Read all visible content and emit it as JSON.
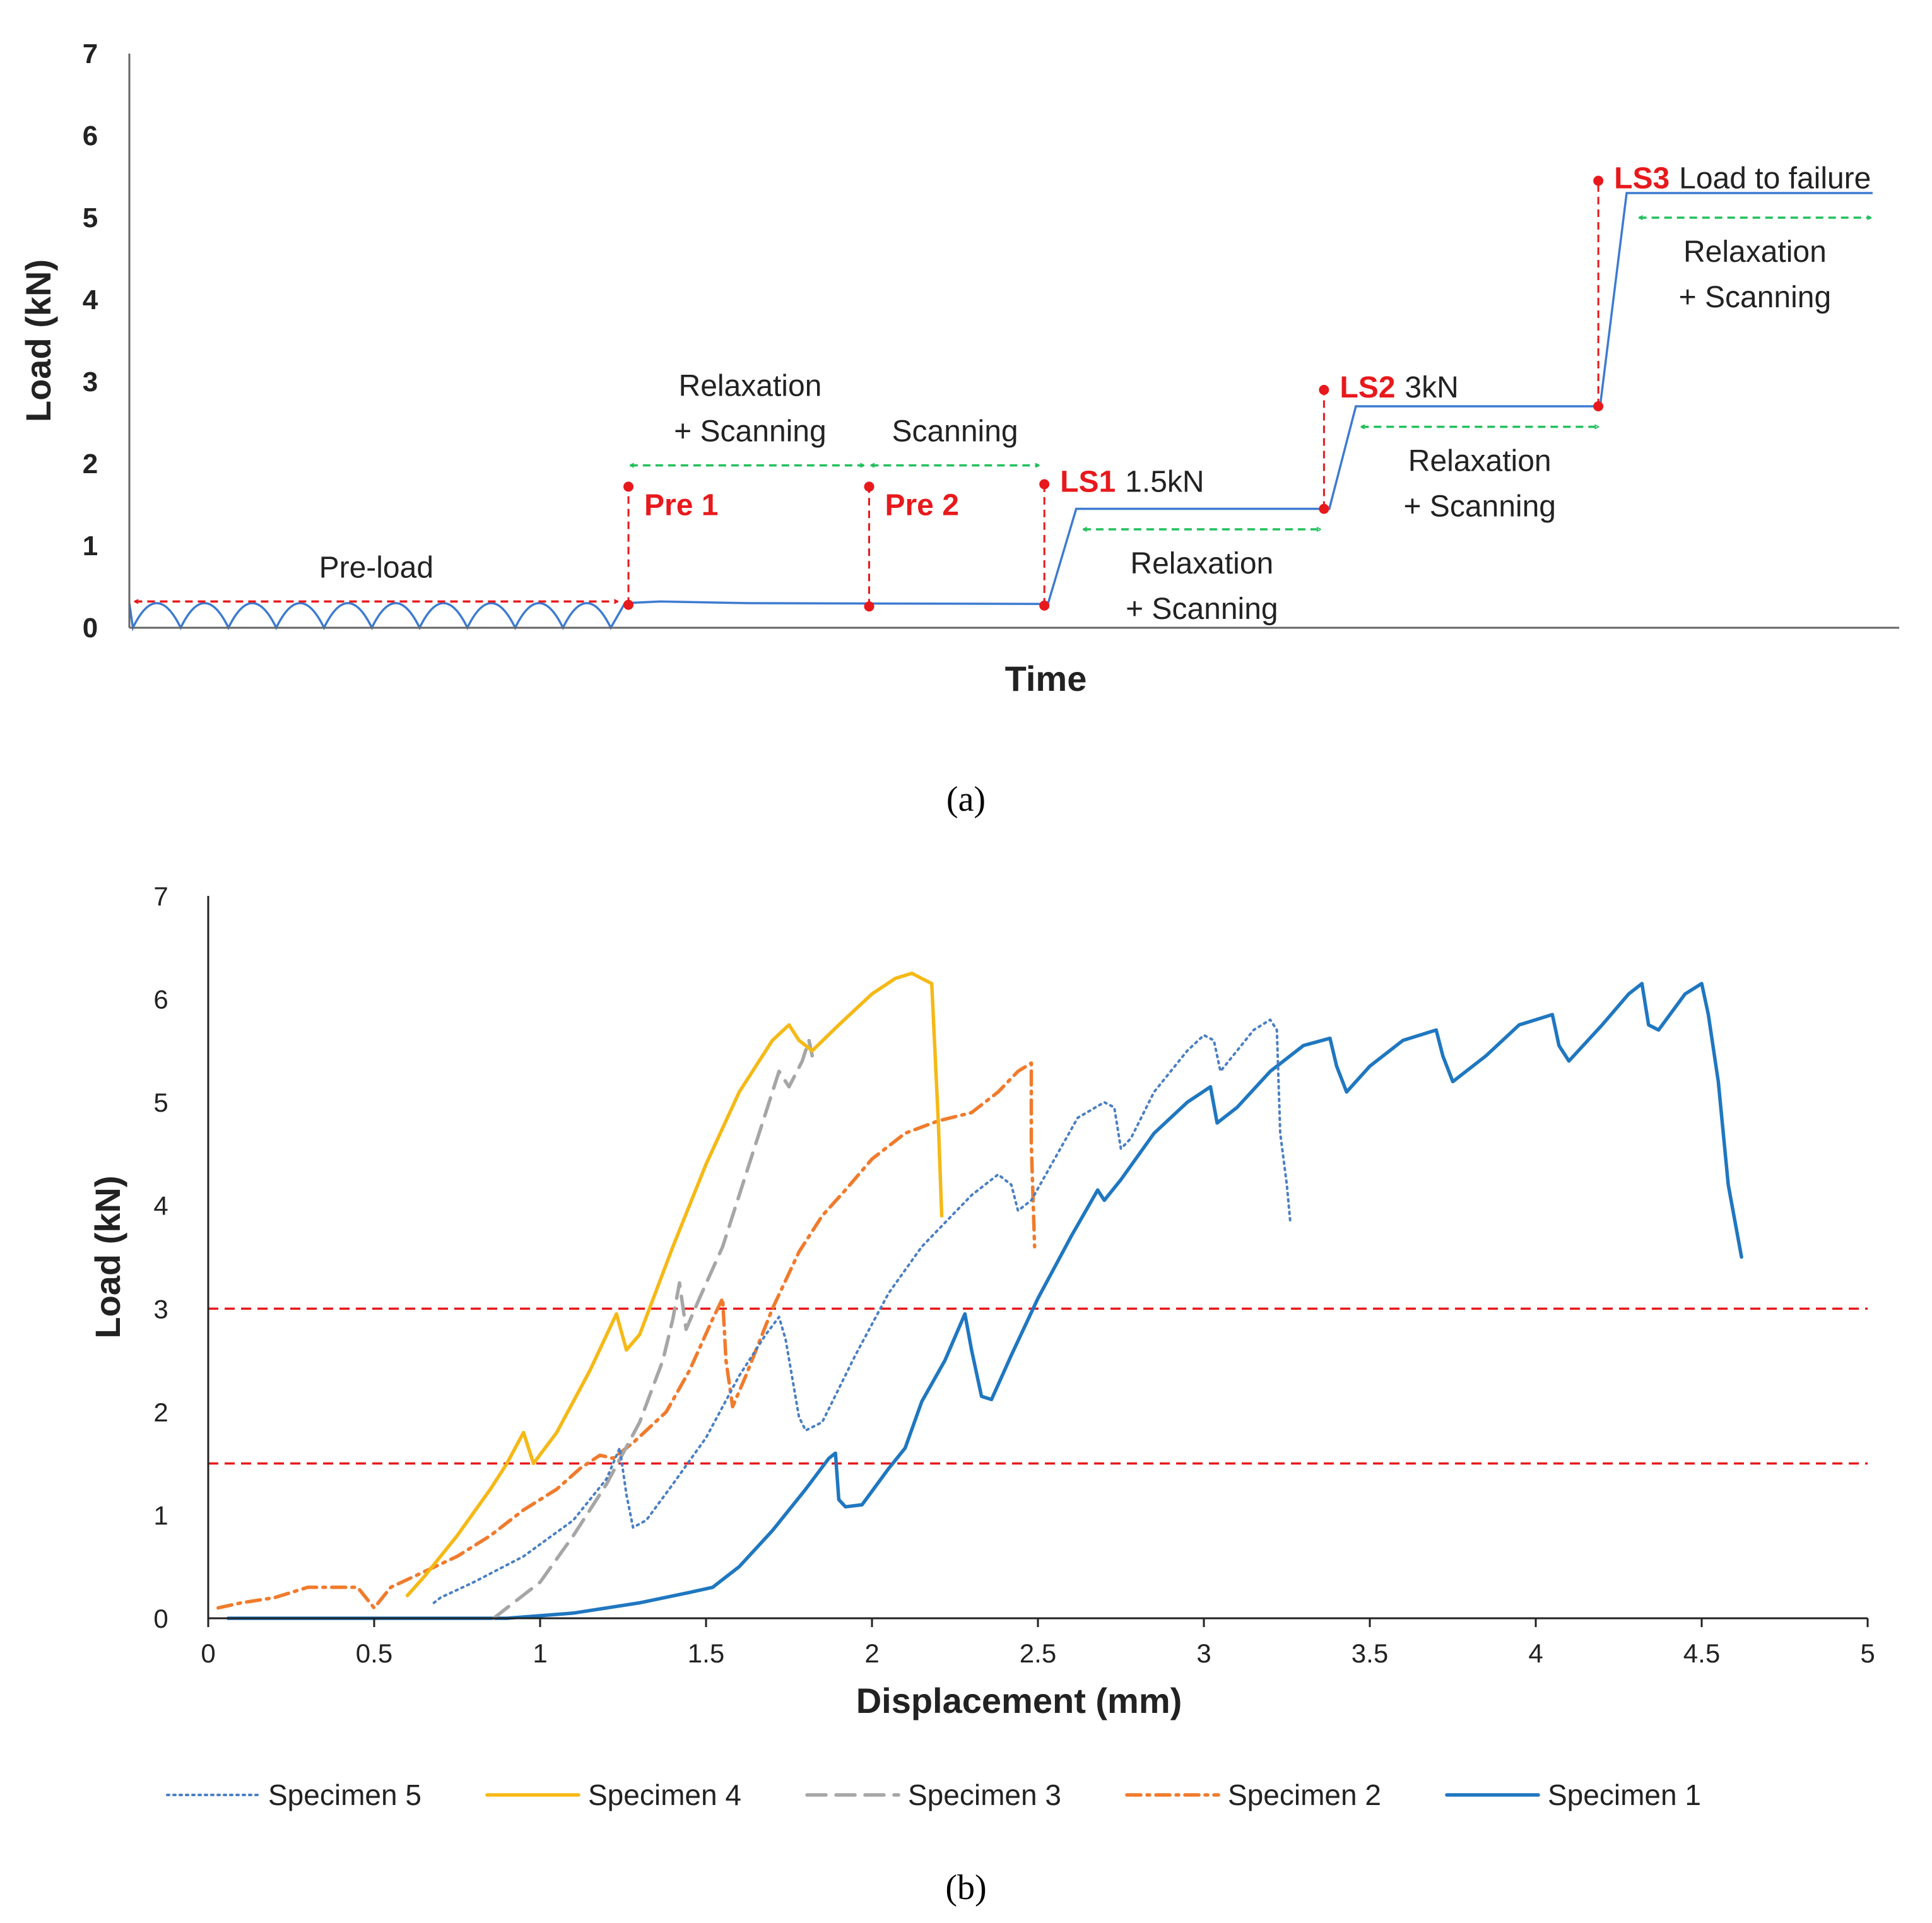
{
  "panel_a": {
    "caption": "(a)",
    "chart_data": {
      "type": "line",
      "title": "",
      "xlabel": "Time",
      "ylabel": "Load (kN)",
      "ylim": [
        0,
        7
      ],
      "yticks": [
        "0",
        "1",
        "2",
        "3",
        "4",
        "5",
        "6",
        "7"
      ],
      "x_units": "arbitrary time",
      "xlim": [
        0,
        100
      ],
      "preload_cycles": 10,
      "preload_peak_kn": 0.3,
      "load_profile": [
        {
          "x": 27.2,
          "y": 0.0
        },
        {
          "x": 28.0,
          "y": 0.3
        },
        {
          "x": 30,
          "y": 0.32
        },
        {
          "x": 35,
          "y": 0.3
        },
        {
          "x": 51.9,
          "y": 0.29
        },
        {
          "x": 53.5,
          "y": 1.45
        },
        {
          "x": 67.8,
          "y": 1.45
        },
        {
          "x": 69.3,
          "y": 2.7
        },
        {
          "x": 83.1,
          "y": 2.7
        },
        {
          "x": 84.6,
          "y": 5.3
        },
        {
          "x": 98.5,
          "y": 5.3
        }
      ],
      "markers": [
        {
          "label": "Pre 1",
          "extra": "",
          "x": 28.2,
          "y_low": 0.28,
          "y_high": 1.72
        },
        {
          "label": "Pre 2",
          "extra": "",
          "x": 41.8,
          "y_low": 0.26,
          "y_high": 1.72
        },
        {
          "label": "LS1",
          "extra": "1.5kN",
          "x": 51.7,
          "y_low": 0.27,
          "y_high": 1.75
        },
        {
          "label": "LS2",
          "extra": "3kN",
          "x": 67.5,
          "y_low": 1.45,
          "y_high": 2.9
        },
        {
          "label": "LS3",
          "extra": "Load to failure",
          "x": 83.0,
          "y_low": 2.7,
          "y_high": 5.45
        }
      ],
      "phases": [
        {
          "color": "red",
          "x0": 0.3,
          "x1": 27.6,
          "y": 0.32,
          "lines": [
            "Pre-load"
          ]
        },
        {
          "color": "green",
          "x0": 28.3,
          "x1": 41.5,
          "y": 1.98,
          "lines": [
            "Relaxation",
            "+ Scanning"
          ]
        },
        {
          "color": "green",
          "x0": 41.9,
          "x1": 51.4,
          "y": 1.98,
          "lines": [
            "Scanning"
          ]
        },
        {
          "color": "green",
          "x0": 53.9,
          "x1": 67.3,
          "y": 1.2,
          "lines": [
            "Relaxation",
            "+ Scanning"
          ]
        },
        {
          "color": "green",
          "x0": 69.6,
          "x1": 83.0,
          "y": 2.45,
          "lines": [
            "Relaxation",
            "+ Scanning"
          ]
        },
        {
          "color": "green",
          "x0": 85.3,
          "x1": 98.4,
          "y": 5.0,
          "lines": [
            "Relaxation",
            "+ Scanning"
          ]
        }
      ]
    }
  },
  "panel_b": {
    "caption": "(b)",
    "chart_data": {
      "type": "line",
      "title": "",
      "xlabel": "Displacement (mm)",
      "ylabel": "Load (kN)",
      "xlim": [
        0,
        5
      ],
      "ylim": [
        0,
        7
      ],
      "xticks": [
        "0",
        "0.5",
        "1",
        "1.5",
        "2",
        "2.5",
        "3",
        "3.5",
        "4",
        "4.5",
        "5"
      ],
      "yticks": [
        "0",
        "1",
        "2",
        "3",
        "4",
        "5",
        "6",
        "7"
      ],
      "reference_lines": [
        1.5,
        3.0
      ],
      "legend_position": "bottom",
      "series": [
        {
          "name": "Specimen 5",
          "color": "#4a7fc4",
          "style": "dotted",
          "points": [
            [
              0.68,
              0.15
            ],
            [
              0.7,
              0.2
            ],
            [
              0.8,
              0.35
            ],
            [
              0.95,
              0.6
            ],
            [
              1.1,
              0.95
            ],
            [
              1.2,
              1.35
            ],
            [
              1.24,
              1.65
            ],
            [
              1.26,
              1.2
            ],
            [
              1.28,
              0.88
            ],
            [
              1.32,
              0.95
            ],
            [
              1.4,
              1.3
            ],
            [
              1.5,
              1.75
            ],
            [
              1.6,
              2.35
            ],
            [
              1.68,
              2.75
            ],
            [
              1.72,
              2.92
            ],
            [
              1.74,
              2.7
            ],
            [
              1.78,
              1.95
            ],
            [
              1.8,
              1.82
            ],
            [
              1.85,
              1.9
            ],
            [
              1.95,
              2.55
            ],
            [
              2.05,
              3.15
            ],
            [
              2.15,
              3.6
            ],
            [
              2.3,
              4.1
            ],
            [
              2.38,
              4.3
            ],
            [
              2.42,
              4.2
            ],
            [
              2.44,
              3.95
            ],
            [
              2.48,
              4.05
            ],
            [
              2.55,
              4.45
            ],
            [
              2.62,
              4.85
            ],
            [
              2.7,
              5.0
            ],
            [
              2.73,
              4.95
            ],
            [
              2.75,
              4.55
            ],
            [
              2.78,
              4.65
            ],
            [
              2.85,
              5.1
            ],
            [
              2.95,
              5.5
            ],
            [
              3.0,
              5.65
            ],
            [
              3.03,
              5.6
            ],
            [
              3.05,
              5.3
            ],
            [
              3.1,
              5.5
            ],
            [
              3.15,
              5.7
            ],
            [
              3.2,
              5.8
            ],
            [
              3.22,
              5.7
            ],
            [
              3.23,
              4.7
            ],
            [
              3.25,
              4.2
            ],
            [
              3.26,
              3.85
            ]
          ]
        },
        {
          "name": "Specimen 4",
          "color": "#f5b916",
          "style": "solid",
          "points": [
            [
              0.6,
              0.22
            ],
            [
              0.65,
              0.4
            ],
            [
              0.75,
              0.8
            ],
            [
              0.85,
              1.25
            ],
            [
              0.9,
              1.5
            ],
            [
              0.95,
              1.8
            ],
            [
              0.98,
              1.5
            ],
            [
              1.05,
              1.8
            ],
            [
              1.15,
              2.4
            ],
            [
              1.23,
              2.95
            ],
            [
              1.26,
              2.6
            ],
            [
              1.3,
              2.75
            ],
            [
              1.4,
              3.6
            ],
            [
              1.5,
              4.4
            ],
            [
              1.6,
              5.1
            ],
            [
              1.7,
              5.6
            ],
            [
              1.75,
              5.75
            ],
            [
              1.78,
              5.6
            ],
            [
              1.82,
              5.5
            ],
            [
              1.9,
              5.75
            ],
            [
              2.0,
              6.05
            ],
            [
              2.07,
              6.2
            ],
            [
              2.12,
              6.25
            ],
            [
              2.15,
              6.2
            ],
            [
              2.18,
              6.15
            ],
            [
              2.2,
              4.8
            ],
            [
              2.21,
              3.9
            ]
          ]
        },
        {
          "name": "Specimen 3",
          "color": "#a6a6a6",
          "style": "dashed",
          "points": [
            [
              0.86,
              0.0
            ],
            [
              0.9,
              0.1
            ],
            [
              1.0,
              0.35
            ],
            [
              1.1,
              0.8
            ],
            [
              1.2,
              1.3
            ],
            [
              1.3,
              1.9
            ],
            [
              1.37,
              2.5
            ],
            [
              1.4,
              2.9
            ],
            [
              1.42,
              3.25
            ],
            [
              1.44,
              2.8
            ],
            [
              1.48,
              3.1
            ],
            [
              1.55,
              3.6
            ],
            [
              1.62,
              4.3
            ],
            [
              1.68,
              4.9
            ],
            [
              1.72,
              5.3
            ],
            [
              1.75,
              5.15
            ],
            [
              1.79,
              5.4
            ],
            [
              1.81,
              5.6
            ],
            [
              1.82,
              5.45
            ]
          ]
        },
        {
          "name": "Specimen 2",
          "color": "#f07b2c",
          "style": "dashdot",
          "points": [
            [
              0.03,
              0.1
            ],
            [
              0.1,
              0.15
            ],
            [
              0.2,
              0.2
            ],
            [
              0.3,
              0.3
            ],
            [
              0.45,
              0.3
            ],
            [
              0.5,
              0.1
            ],
            [
              0.55,
              0.3
            ],
            [
              0.65,
              0.45
            ],
            [
              0.75,
              0.6
            ],
            [
              0.85,
              0.8
            ],
            [
              0.95,
              1.05
            ],
            [
              1.05,
              1.25
            ],
            [
              1.12,
              1.45
            ],
            [
              1.18,
              1.58
            ],
            [
              1.22,
              1.55
            ],
            [
              1.28,
              1.7
            ],
            [
              1.38,
              2.0
            ],
            [
              1.45,
              2.4
            ],
            [
              1.52,
              2.9
            ],
            [
              1.55,
              3.1
            ],
            [
              1.56,
              2.5
            ],
            [
              1.58,
              2.05
            ],
            [
              1.62,
              2.35
            ],
            [
              1.7,
              3.0
            ],
            [
              1.78,
              3.55
            ],
            [
              1.85,
              3.9
            ],
            [
              1.92,
              4.15
            ],
            [
              2.0,
              4.45
            ],
            [
              2.1,
              4.7
            ],
            [
              2.2,
              4.82
            ],
            [
              2.3,
              4.9
            ],
            [
              2.38,
              5.1
            ],
            [
              2.44,
              5.3
            ],
            [
              2.48,
              5.38
            ],
            [
              2.48,
              4.6
            ],
            [
              2.49,
              3.6
            ]
          ]
        },
        {
          "name": "Specimen 1",
          "color": "#1f77c0",
          "style": "solid",
          "points": [
            [
              0.06,
              0.0
            ],
            [
              0.5,
              0.0
            ],
            [
              0.9,
              0.0
            ],
            [
              1.1,
              0.05
            ],
            [
              1.3,
              0.15
            ],
            [
              1.45,
              0.25
            ],
            [
              1.52,
              0.3
            ],
            [
              1.6,
              0.5
            ],
            [
              1.7,
              0.85
            ],
            [
              1.8,
              1.25
            ],
            [
              1.87,
              1.55
            ],
            [
              1.89,
              1.6
            ],
            [
              1.9,
              1.15
            ],
            [
              1.92,
              1.08
            ],
            [
              1.97,
              1.1
            ],
            [
              2.05,
              1.45
            ],
            [
              2.1,
              1.65
            ],
            [
              2.15,
              2.1
            ],
            [
              2.22,
              2.5
            ],
            [
              2.28,
              2.95
            ],
            [
              2.3,
              2.6
            ],
            [
              2.33,
              2.15
            ],
            [
              2.36,
              2.12
            ],
            [
              2.42,
              2.55
            ],
            [
              2.5,
              3.1
            ],
            [
              2.6,
              3.7
            ],
            [
              2.68,
              4.15
            ],
            [
              2.7,
              4.05
            ],
            [
              2.75,
              4.25
            ],
            [
              2.85,
              4.7
            ],
            [
              2.95,
              5.0
            ],
            [
              3.02,
              5.15
            ],
            [
              3.04,
              4.8
            ],
            [
              3.1,
              4.95
            ],
            [
              3.2,
              5.3
            ],
            [
              3.3,
              5.55
            ],
            [
              3.38,
              5.62
            ],
            [
              3.4,
              5.35
            ],
            [
              3.43,
              5.1
            ],
            [
              3.5,
              5.35
            ],
            [
              3.6,
              5.6
            ],
            [
              3.7,
              5.7
            ],
            [
              3.72,
              5.45
            ],
            [
              3.75,
              5.2
            ],
            [
              3.85,
              5.45
            ],
            [
              3.95,
              5.75
            ],
            [
              4.05,
              5.85
            ],
            [
              4.07,
              5.55
            ],
            [
              4.1,
              5.4
            ],
            [
              4.2,
              5.75
            ],
            [
              4.28,
              6.05
            ],
            [
              4.32,
              6.15
            ],
            [
              4.34,
              5.75
            ],
            [
              4.37,
              5.7
            ],
            [
              4.45,
              6.05
            ],
            [
              4.5,
              6.15
            ],
            [
              4.52,
              5.85
            ],
            [
              4.55,
              5.2
            ],
            [
              4.58,
              4.2
            ],
            [
              4.6,
              3.85
            ],
            [
              4.62,
              3.5
            ]
          ]
        }
      ]
    }
  }
}
